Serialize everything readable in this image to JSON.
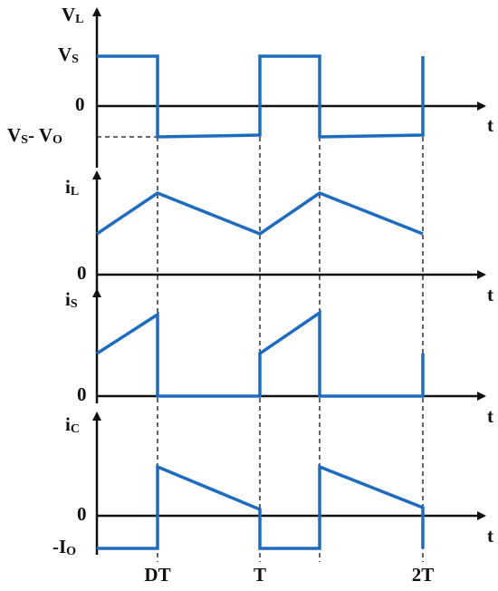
{
  "panels": [
    {
      "y_label": [
        "V",
        "L"
      ],
      "levels": [
        [
          "V",
          "S"
        ],
        [
          "0"
        ],
        [
          "V",
          "S",
          "- V",
          "O"
        ]
      ],
      "x_label": "t"
    },
    {
      "y_label": [
        "i",
        "L"
      ],
      "levels": [
        [
          "0"
        ]
      ],
      "x_label": "t"
    },
    {
      "y_label": [
        "i",
        "S"
      ],
      "levels": [
        [
          "0"
        ]
      ],
      "x_label": "t"
    },
    {
      "y_label": [
        "i",
        "C"
      ],
      "levels": [
        [
          "0"
        ],
        [
          "-I",
          "O"
        ]
      ],
      "x_label": "t"
    }
  ],
  "time_labels": [
    "DT",
    "T",
    "2T"
  ]
}
